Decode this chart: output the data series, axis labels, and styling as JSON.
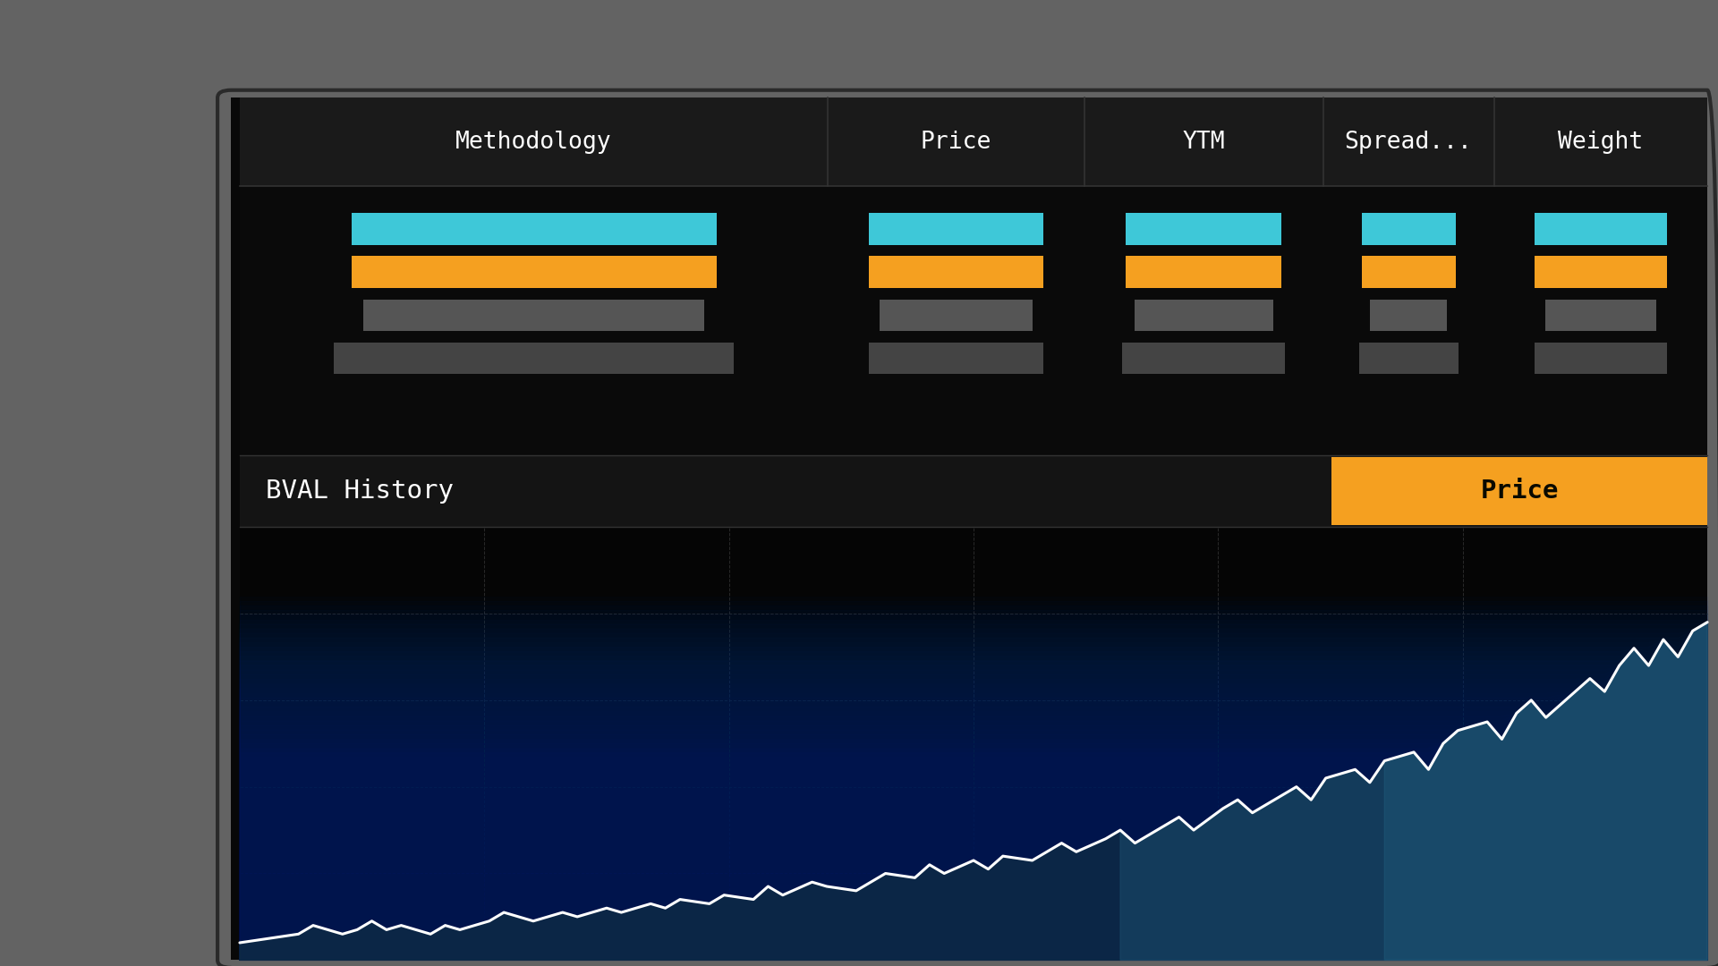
{
  "bg_outer": "#636363",
  "bg_screen": "#080808",
  "text_color": "#ffffff",
  "cyan_color": "#3ec8d8",
  "orange_color": "#f5a020",
  "gray_bar1": "#555555",
  "gray_bar2": "#444444",
  "header_bg": "#1a1a1a",
  "data_bg": "#0a0a0a",
  "bval_header_bg": "#181818",
  "chart_bg": "#050505",
  "grid_color": "#2a2a2a",
  "chart_line_color": "#ffffff",
  "price_badge_bg": "#f5a020",
  "header_labels": [
    "Methodology",
    "Price",
    "YTM",
    "Spread...",
    "Weight"
  ],
  "bval_history_label": "BVAL History",
  "price_badge_label": "Price",
  "chart_points_x": [
    0.0,
    0.02,
    0.04,
    0.05,
    0.07,
    0.08,
    0.09,
    0.1,
    0.11,
    0.13,
    0.14,
    0.15,
    0.17,
    0.18,
    0.19,
    0.2,
    0.22,
    0.23,
    0.25,
    0.26,
    0.28,
    0.29,
    0.3,
    0.32,
    0.33,
    0.35,
    0.36,
    0.37,
    0.39,
    0.4,
    0.42,
    0.43,
    0.44,
    0.46,
    0.47,
    0.48,
    0.5,
    0.51,
    0.52,
    0.54,
    0.55,
    0.56,
    0.57,
    0.59,
    0.6,
    0.61,
    0.63,
    0.64,
    0.65,
    0.67,
    0.68,
    0.69,
    0.71,
    0.72,
    0.73,
    0.74,
    0.76,
    0.77,
    0.78,
    0.8,
    0.81,
    0.82,
    0.83,
    0.85,
    0.86,
    0.87,
    0.88,
    0.89,
    0.91,
    0.92,
    0.93,
    0.94,
    0.95,
    0.96,
    0.97,
    0.98,
    0.99,
    1.0
  ],
  "chart_points_y": [
    0.04,
    0.05,
    0.06,
    0.08,
    0.06,
    0.07,
    0.09,
    0.07,
    0.08,
    0.06,
    0.08,
    0.07,
    0.09,
    0.11,
    0.1,
    0.09,
    0.11,
    0.1,
    0.12,
    0.11,
    0.13,
    0.12,
    0.14,
    0.13,
    0.15,
    0.14,
    0.17,
    0.15,
    0.18,
    0.17,
    0.16,
    0.18,
    0.2,
    0.19,
    0.22,
    0.2,
    0.23,
    0.21,
    0.24,
    0.23,
    0.25,
    0.27,
    0.25,
    0.28,
    0.3,
    0.27,
    0.31,
    0.33,
    0.3,
    0.35,
    0.37,
    0.34,
    0.38,
    0.4,
    0.37,
    0.42,
    0.44,
    0.41,
    0.46,
    0.48,
    0.44,
    0.5,
    0.53,
    0.55,
    0.51,
    0.57,
    0.6,
    0.56,
    0.62,
    0.65,
    0.62,
    0.68,
    0.72,
    0.68,
    0.74,
    0.7,
    0.76,
    0.78
  ]
}
